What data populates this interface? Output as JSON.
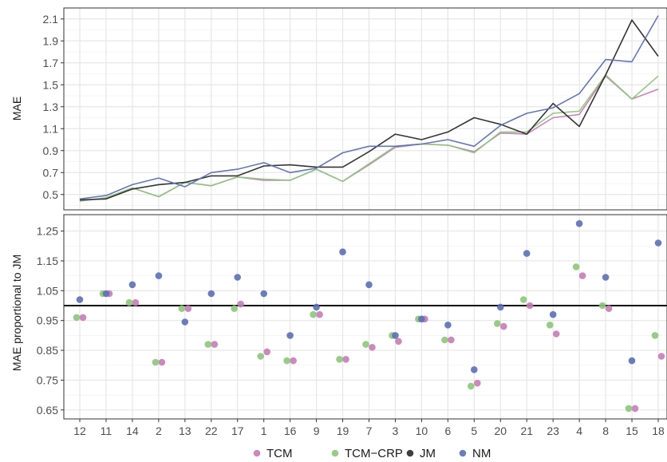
{
  "chart_data": [
    {
      "type": "line",
      "ylabel": "MAE",
      "ylim": [
        0.36,
        2.2
      ],
      "yticks": [
        "0.5",
        "0.7",
        "0.9",
        "1.1",
        "1.3",
        "1.5",
        "1.7",
        "1.9",
        "2.1"
      ],
      "categories": [
        "12",
        "11",
        "14",
        "2",
        "13",
        "22",
        "17",
        "1",
        "16",
        "9",
        "19",
        "7",
        "3",
        "10",
        "6",
        "5",
        "20",
        "21",
        "23",
        "4",
        "8",
        "15",
        "18"
      ],
      "grid": true,
      "series": [
        {
          "name": "TCM",
          "color": "#c77cb7",
          "values": [
            0.44,
            0.47,
            0.56,
            0.48,
            0.61,
            0.58,
            0.66,
            0.63,
            0.63,
            0.73,
            0.62,
            0.77,
            0.93,
            0.96,
            0.95,
            0.89,
            1.06,
            1.05,
            1.2,
            1.23,
            1.58,
            1.37,
            1.46
          ]
        },
        {
          "name": "TCM-CRP",
          "color": "#8cc77a",
          "values": [
            0.44,
            0.47,
            0.56,
            0.48,
            0.61,
            0.58,
            0.66,
            0.64,
            0.63,
            0.73,
            0.62,
            0.78,
            0.94,
            0.96,
            0.95,
            0.88,
            1.07,
            1.07,
            1.24,
            1.26,
            1.59,
            1.37,
            1.58
          ]
        },
        {
          "name": "JM",
          "color": "#2a2a2a",
          "values": [
            0.45,
            0.46,
            0.55,
            0.59,
            0.61,
            0.67,
            0.67,
            0.76,
            0.77,
            0.75,
            0.75,
            0.89,
            1.05,
            1.0,
            1.07,
            1.2,
            1.14,
            1.05,
            1.33,
            1.12,
            1.59,
            2.09,
            1.76
          ]
        },
        {
          "name": "NM",
          "color": "#5b6fb5",
          "values": [
            0.46,
            0.49,
            0.59,
            0.65,
            0.57,
            0.7,
            0.73,
            0.79,
            0.7,
            0.74,
            0.88,
            0.94,
            0.94,
            0.96,
            1.0,
            0.94,
            1.13,
            1.24,
            1.29,
            1.42,
            1.73,
            1.71,
            2.13
          ]
        }
      ]
    },
    {
      "type": "scatter",
      "ylabel": "MAE proportional to JM",
      "ylim": [
        0.62,
        1.305
      ],
      "yticks": [
        "0.65",
        "0.75",
        "0.85",
        "0.95",
        "1.05",
        "1.15",
        "1.25"
      ],
      "categories": [
        "12",
        "11",
        "14",
        "2",
        "13",
        "22",
        "17",
        "1",
        "16",
        "9",
        "19",
        "7",
        "3",
        "10",
        "6",
        "5",
        "20",
        "21",
        "23",
        "4",
        "8",
        "15",
        "18"
      ],
      "grid": true,
      "reference_line": 1.0,
      "series": [
        {
          "name": "TCM",
          "color": "#c77cb7",
          "values": [
            0.96,
            1.04,
            1.01,
            0.81,
            0.99,
            0.87,
            1.005,
            0.845,
            0.815,
            0.97,
            0.82,
            0.86,
            0.88,
            0.955,
            0.885,
            0.74,
            0.93,
            1.0,
            0.905,
            1.1,
            0.99,
            0.655,
            0.83
          ]
        },
        {
          "name": "TCM-CRP",
          "color": "#8cc77a",
          "values": [
            0.96,
            1.04,
            1.01,
            0.81,
            0.99,
            0.87,
            0.99,
            0.83,
            0.815,
            0.97,
            0.82,
            0.87,
            0.9,
            0.955,
            0.885,
            0.73,
            0.94,
            1.02,
            0.935,
            1.13,
            1.0,
            0.655,
            0.9
          ]
        },
        {
          "name": "NM",
          "color": "#5b6fb5",
          "values": [
            1.02,
            1.04,
            1.07,
            1.1,
            0.945,
            1.04,
            1.095,
            1.04,
            0.9,
            0.995,
            1.18,
            1.07,
            0.9,
            0.955,
            0.935,
            0.785,
            0.995,
            1.175,
            0.97,
            1.275,
            1.095,
            0.815,
            1.21
          ]
        }
      ]
    }
  ],
  "legend": {
    "placement": "bottom",
    "items": [
      {
        "label": "TCM",
        "color": "#c77cb7"
      },
      {
        "label": "TCM−CRP",
        "color": "#8cc77a"
      },
      {
        "label": "JM",
        "color": "#2a2a2a"
      },
      {
        "label": "NM",
        "color": "#5b6fb5"
      }
    ]
  }
}
